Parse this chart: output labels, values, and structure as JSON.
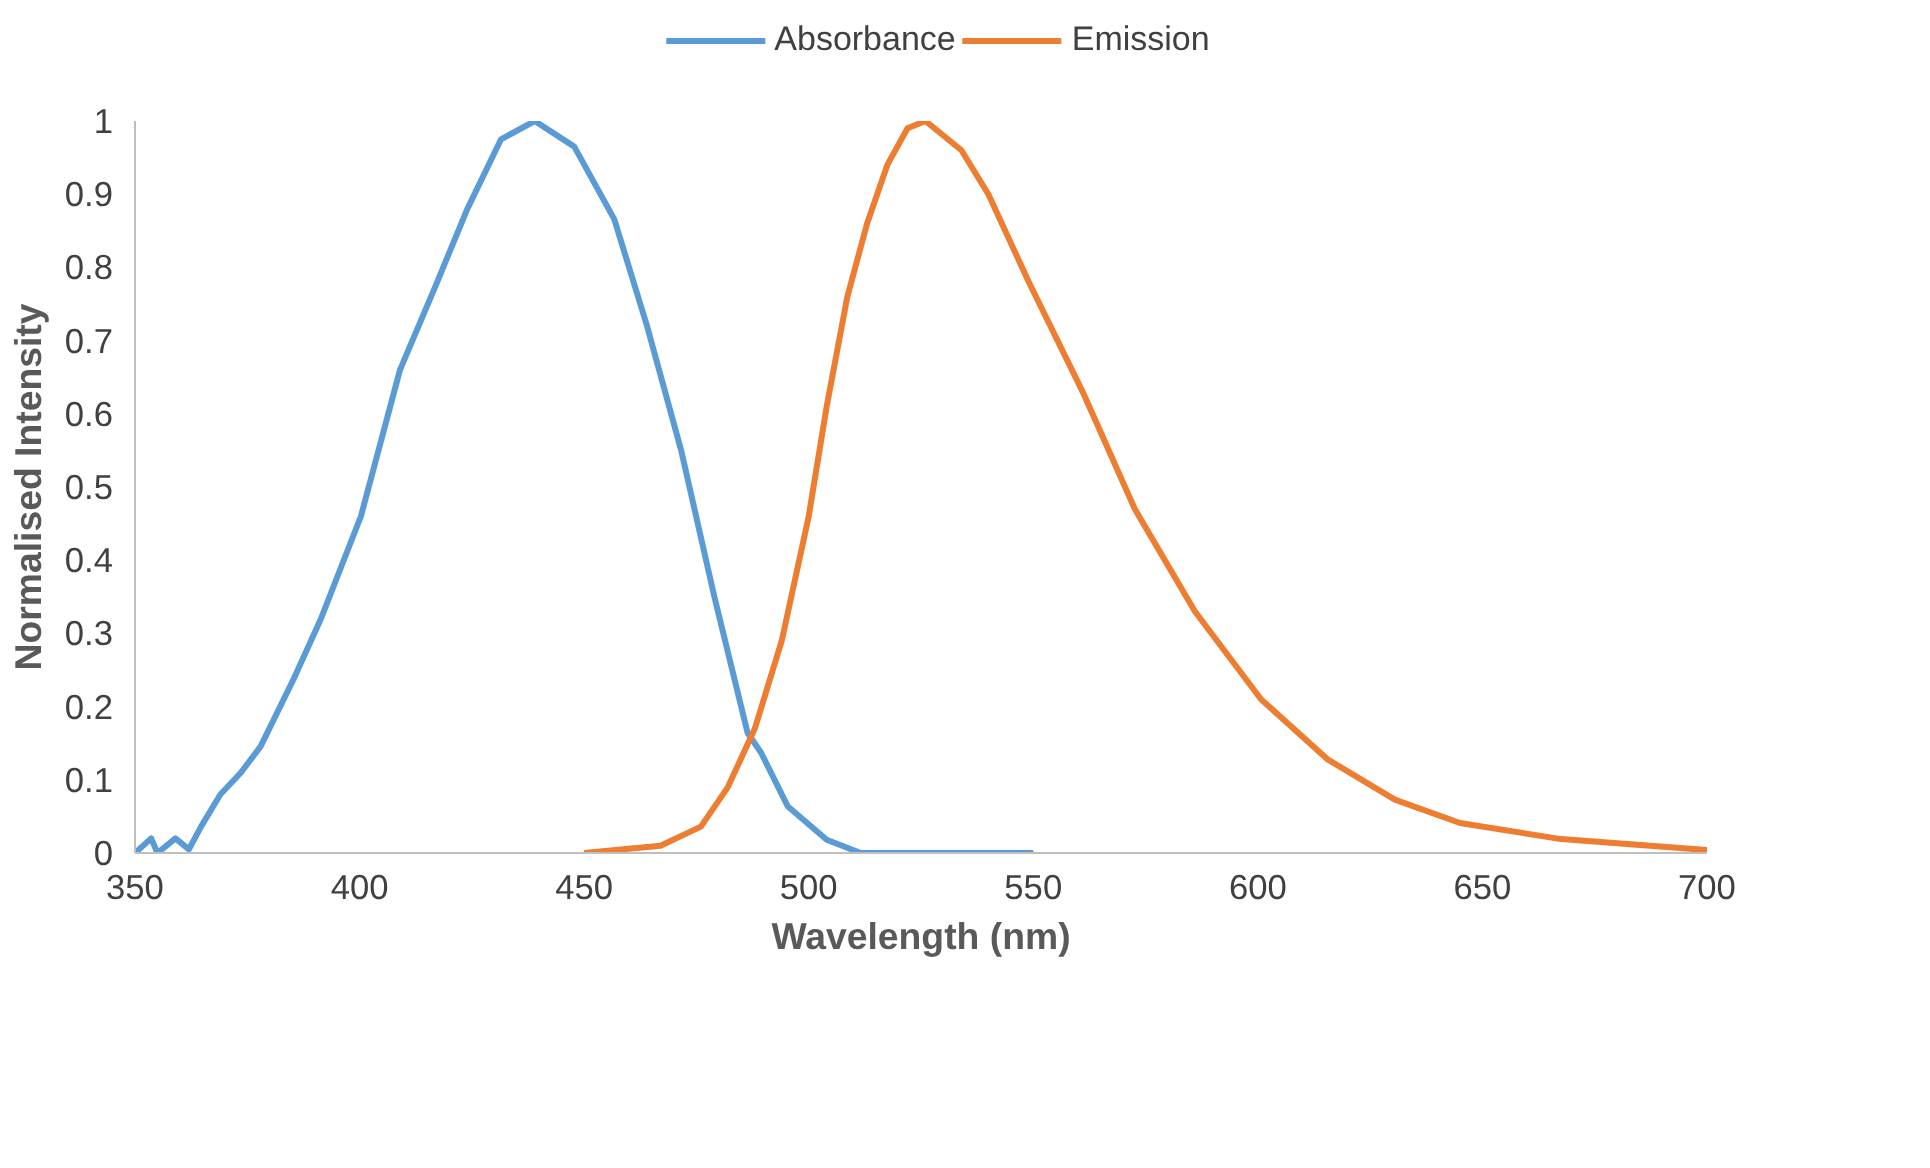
{
  "chart_data": {
    "type": "line",
    "xlabel": "Wavelength (nm)",
    "ylabel": "Normalised Intensity",
    "xlim": [
      350,
      700
    ],
    "xticks": [
      350,
      400,
      450,
      500,
      550,
      600,
      650,
      700
    ],
    "ylim": [
      0,
      1
    ],
    "yticks": [
      0,
      0.1,
      0.2,
      0.3,
      0.4,
      0.5,
      0.6,
      0.7,
      0.8,
      0.9,
      1
    ],
    "grid": false,
    "legend": "top",
    "marker": "none",
    "line_style": "solid",
    "series": [
      {
        "name": "Absorbance",
        "color": "#5b9bd5",
        "x": [
          350,
          353.6,
          355,
          359,
          362,
          364.7,
          369,
          373.6,
          378,
          385.5,
          391.4,
          400.3,
          409,
          416.6,
          424,
          431.5,
          439,
          447.8,
          456.7,
          464,
          471.6,
          479,
          486.4,
          489.4,
          495.3,
          504,
          511.6,
          530,
          550
        ],
        "values": [
          0,
          0.02,
          0,
          0.02,
          0.005,
          0.036,
          0.08,
          0.11,
          0.146,
          0.24,
          0.32,
          0.46,
          0.66,
          0.77,
          0.88,
          0.975,
          1.0,
          0.965,
          0.866,
          0.72,
          0.55,
          0.35,
          0.164,
          0.137,
          0.064,
          0.018,
          0,
          0,
          0
        ]
      },
      {
        "name": "Emission",
        "color": "#ed7d31",
        "x": [
          450,
          467,
          476,
          482,
          488,
          494,
          500,
          504,
          508.6,
          513,
          517.5,
          522,
          526,
          534,
          540,
          549,
          561,
          572.6,
          586,
          600.7,
          615.5,
          630.5,
          645,
          667.5,
          700
        ],
        "values": [
          0,
          0.01,
          0.036,
          0.09,
          0.17,
          0.29,
          0.46,
          0.61,
          0.76,
          0.86,
          0.94,
          0.99,
          1.0,
          0.96,
          0.9,
          0.78,
          0.63,
          0.47,
          0.33,
          0.21,
          0.128,
          0.073,
          0.041,
          0.019,
          0.004
        ]
      }
    ]
  }
}
